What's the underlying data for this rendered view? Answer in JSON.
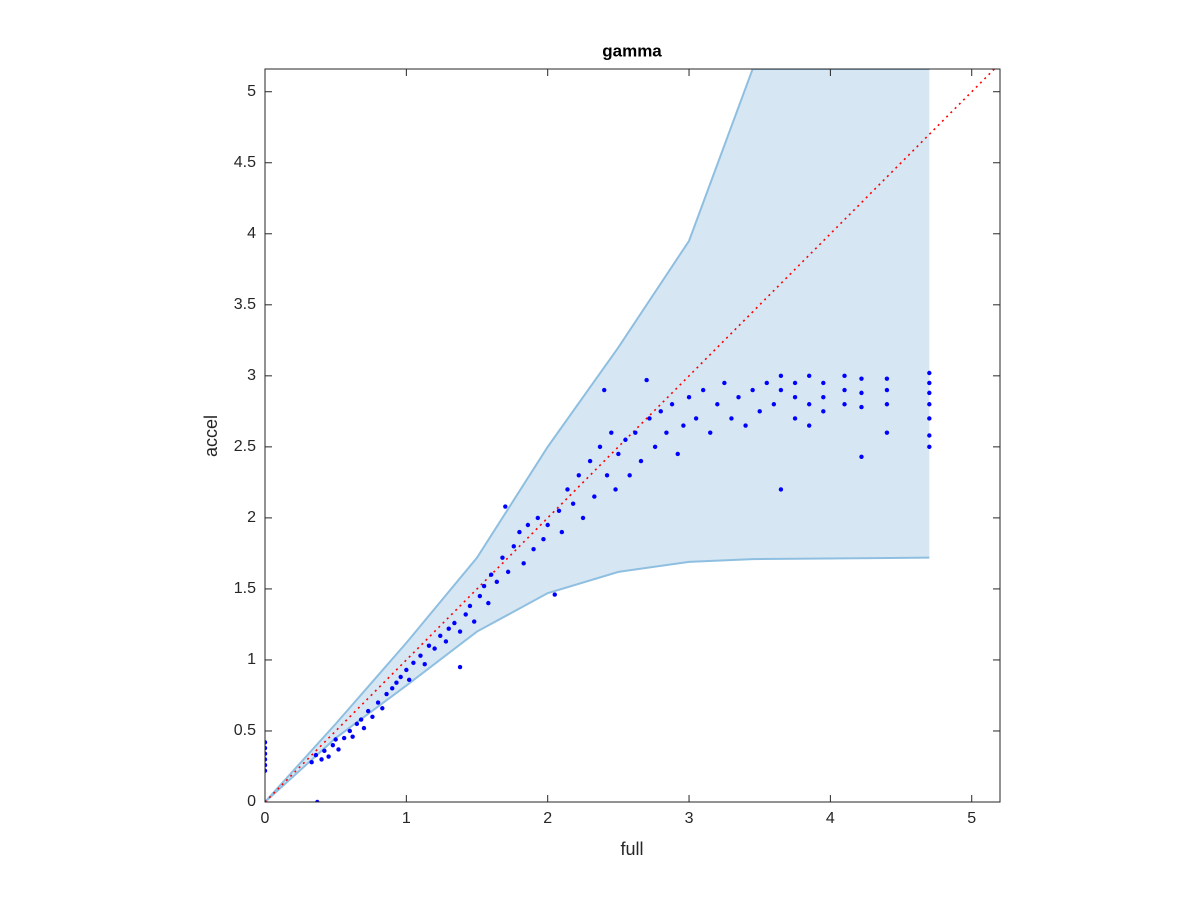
{
  "chart_data": {
    "type": "scatter",
    "title": "gamma",
    "xlabel": "full",
    "ylabel": "accel",
    "xlim": [
      0,
      5.2
    ],
    "ylim": [
      0,
      5.16
    ],
    "xticks": [
      0,
      1,
      2,
      3,
      4,
      5
    ],
    "yticks": [
      0,
      0.5,
      1,
      1.5,
      2,
      2.5,
      3,
      3.5,
      4,
      4.5,
      5
    ],
    "band": {
      "color": "#d6e6f3",
      "edge_color": "#8fbfe0",
      "x": [
        0,
        0.5,
        1,
        1.5,
        2,
        2.5,
        3,
        3.45,
        4.7
      ],
      "upper": [
        0,
        0.55,
        1.12,
        1.72,
        2.5,
        3.2,
        3.95,
        5.16,
        5.16
      ],
      "lower": [
        0,
        0.45,
        0.82,
        1.2,
        1.47,
        1.62,
        1.69,
        1.71,
        1.72
      ]
    },
    "reference_line": {
      "color": "#ff0000",
      "x": [
        0,
        5.2
      ],
      "y": [
        0,
        5.2
      ]
    },
    "series": [
      {
        "color": "#0000ff",
        "x": [
          0,
          0,
          0,
          0,
          0,
          0,
          0.37,
          0.33,
          0.36,
          0.4,
          0.42,
          0.45,
          0.48,
          0.5,
          0.52,
          0.56,
          0.6,
          0.62,
          0.65,
          0.68,
          0.7,
          0.73,
          0.76,
          0.8,
          0.83,
          0.86,
          0.9,
          0.93,
          0.96,
          1.0,
          1.02,
          1.05,
          1.1,
          1.13,
          1.16,
          1.2,
          1.24,
          1.28,
          1.3,
          1.34,
          1.38,
          1.42,
          1.45,
          1.48,
          1.38,
          1.52,
          1.55,
          1.58,
          1.6,
          1.64,
          1.68,
          1.7,
          1.72,
          1.76,
          1.8,
          1.83,
          1.86,
          1.9,
          1.93,
          1.97,
          2.0,
          2.05,
          2.08,
          2.1,
          2.14,
          2.18,
          2.22,
          2.25,
          2.3,
          2.33,
          2.37,
          2.4,
          2.42,
          2.45,
          2.48,
          2.5,
          2.55,
          2.58,
          2.62,
          2.66,
          2.7,
          2.72,
          2.76,
          2.8,
          2.84,
          2.88,
          2.92,
          2.96,
          3.0,
          3.05,
          3.1,
          3.15,
          3.2,
          3.25,
          3.3,
          3.35,
          3.4,
          3.45,
          3.5,
          3.55,
          3.6,
          3.65,
          3.65,
          3.65,
          3.75,
          3.75,
          3.75,
          3.85,
          3.85,
          3.85,
          3.95,
          3.95,
          3.95,
          4.1,
          4.1,
          4.1,
          4.22,
          4.22,
          4.22,
          4.22,
          4.4,
          4.4,
          4.4,
          4.4,
          4.7,
          4.7,
          4.7,
          4.7,
          4.7,
          4.7,
          4.7
        ],
        "y": [
          0.22,
          0.26,
          0.3,
          0.34,
          0.38,
          0.42,
          0,
          0.28,
          0.33,
          0.3,
          0.36,
          0.32,
          0.4,
          0.44,
          0.37,
          0.45,
          0.5,
          0.46,
          0.55,
          0.58,
          0.52,
          0.64,
          0.6,
          0.7,
          0.66,
          0.76,
          0.8,
          0.84,
          0.88,
          0.93,
          0.86,
          0.98,
          1.03,
          0.97,
          1.1,
          1.08,
          1.17,
          1.13,
          1.22,
          1.26,
          1.2,
          1.32,
          1.38,
          1.27,
          0.95,
          1.45,
          1.52,
          1.4,
          1.6,
          1.55,
          1.72,
          2.08,
          1.62,
          1.8,
          1.9,
          1.68,
          1.95,
          1.78,
          2.0,
          1.85,
          1.95,
          1.46,
          2.05,
          1.9,
          2.2,
          2.1,
          2.3,
          2.0,
          2.4,
          2.15,
          2.5,
          2.9,
          2.3,
          2.6,
          2.2,
          2.45,
          2.55,
          2.3,
          2.6,
          2.4,
          2.97,
          2.7,
          2.5,
          2.75,
          2.6,
          2.8,
          2.45,
          2.65,
          2.85,
          2.7,
          2.9,
          2.6,
          2.8,
          2.95,
          2.7,
          2.85,
          2.65,
          2.9,
          2.75,
          2.95,
          2.8,
          2.2,
          3.0,
          2.9,
          2.95,
          2.85,
          2.7,
          3.0,
          2.8,
          2.65,
          2.95,
          2.85,
          2.75,
          3.0,
          2.9,
          2.8,
          2.98,
          2.88,
          2.78,
          2.43,
          2.98,
          2.9,
          2.8,
          2.6,
          3.02,
          2.95,
          2.88,
          2.8,
          2.7,
          2.58,
          2.5
        ]
      }
    ]
  }
}
